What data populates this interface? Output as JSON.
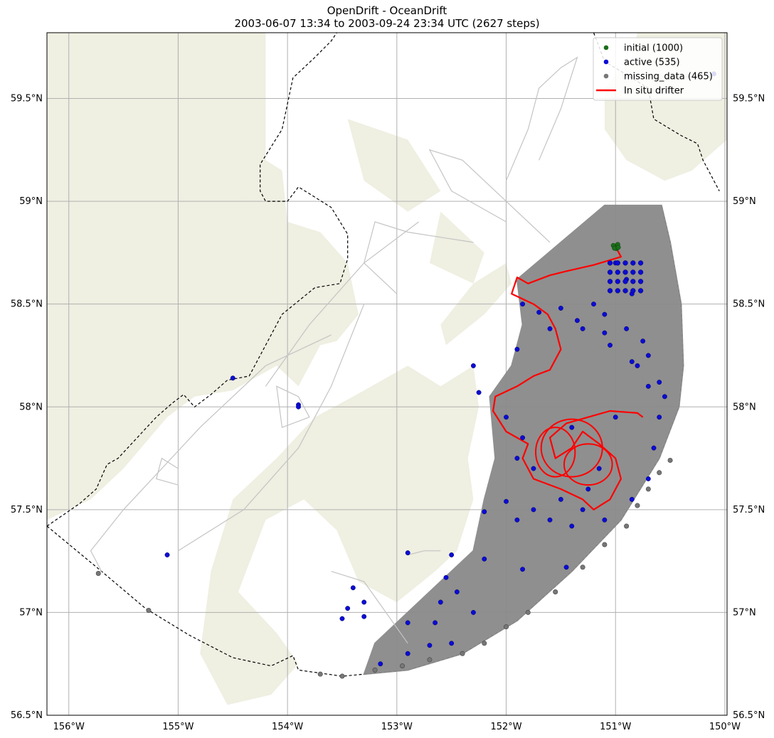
{
  "title": "OpenDrift - OceanDrift",
  "subtitle": "2003-06-07 13:34 to 2003-09-24 23:34 UTC (2627 steps)",
  "map": {
    "lon_range": [
      -156.2,
      -149.98
    ],
    "lat_range": [
      56.5,
      59.82
    ],
    "lon_ticks": [
      {
        "value": -156,
        "label": "156°W"
      },
      {
        "value": -155,
        "label": "155°W"
      },
      {
        "value": -154,
        "label": "154°W"
      },
      {
        "value": -153,
        "label": "153°W"
      },
      {
        "value": -152,
        "label": "152°W"
      },
      {
        "value": -151,
        "label": "151°W"
      },
      {
        "value": -150,
        "label": "150°W"
      }
    ],
    "lat_ticks": [
      {
        "value": 56.5,
        "label": "56.5°N"
      },
      {
        "value": 57.0,
        "label": "57°N"
      },
      {
        "value": 57.5,
        "label": "57.5°N"
      },
      {
        "value": 58.0,
        "label": "58°N"
      },
      {
        "value": 58.5,
        "label": "58.5°N"
      },
      {
        "value": 59.0,
        "label": "59°N"
      },
      {
        "value": 59.5,
        "label": "59.5°N"
      }
    ],
    "land_color": "#efefe2",
    "grid": true
  },
  "legend": {
    "position": "top-right",
    "items": [
      {
        "label": "initial (1000)",
        "color": "#1a6e1a",
        "kind": "dot"
      },
      {
        "label": "active (535)",
        "color": "#0b0bd6",
        "kind": "dot"
      },
      {
        "label": "missing_data (465)",
        "color": "#777777",
        "kind": "dot"
      },
      {
        "label": "In situ drifter",
        "color": "#ff0000",
        "kind": "line"
      }
    ]
  },
  "colors": {
    "trajectories": "#8a8a8a",
    "trajectory_light": "#c4c4c4",
    "active": "#0b0bd6",
    "initial": "#1a6e1a",
    "missing": "#777777",
    "drifter": "#ff0000"
  },
  "drift_data": {
    "seeding_site": {
      "lon": -151.0,
      "lat": 58.78
    },
    "initial_count": 1000,
    "active_count": 535,
    "missing_count": 465,
    "sample_active": [
      [
        -151.0,
        58.7
      ],
      [
        -150.9,
        58.62
      ],
      [
        -150.85,
        58.55
      ],
      [
        -151.1,
        58.45
      ],
      [
        -151.2,
        58.5
      ],
      [
        -151.35,
        58.42
      ],
      [
        -151.5,
        58.48
      ],
      [
        -151.6,
        58.38
      ],
      [
        -150.9,
        58.38
      ],
      [
        -150.75,
        58.32
      ],
      [
        -150.7,
        58.25
      ],
      [
        -151.05,
        58.3
      ],
      [
        -151.1,
        58.36
      ],
      [
        -150.8,
        58.2
      ],
      [
        -150.6,
        58.12
      ],
      [
        -150.55,
        58.05
      ],
      [
        -150.6,
        57.95
      ],
      [
        -150.7,
        58.1
      ],
      [
        -150.85,
        58.22
      ],
      [
        -151.3,
        58.38
      ],
      [
        -151.85,
        58.5
      ],
      [
        -151.7,
        58.46
      ],
      [
        -151.9,
        58.28
      ],
      [
        -152.3,
        58.2
      ],
      [
        -152.25,
        58.07
      ],
      [
        -152.2,
        57.49
      ],
      [
        -152.0,
        57.54
      ],
      [
        -151.9,
        57.45
      ],
      [
        -151.75,
        57.5
      ],
      [
        -151.6,
        57.45
      ],
      [
        -151.5,
        57.55
      ],
      [
        -151.3,
        57.5
      ],
      [
        -151.1,
        57.45
      ],
      [
        -150.85,
        57.55
      ],
      [
        -151.4,
        57.42
      ],
      [
        -151.45,
        57.22
      ],
      [
        -151.85,
        57.21
      ],
      [
        -152.2,
        57.26
      ],
      [
        -152.5,
        57.28
      ],
      [
        -152.55,
        57.17
      ],
      [
        -152.6,
        57.05
      ],
      [
        -152.45,
        57.1
      ],
      [
        -152.3,
        57.0
      ],
      [
        -152.5,
        56.85
      ],
      [
        -152.65,
        56.95
      ],
      [
        -152.7,
        56.84
      ],
      [
        -152.9,
        56.95
      ],
      [
        -152.9,
        56.8
      ],
      [
        -153.15,
        56.75
      ],
      [
        -153.3,
        57.05
      ],
      [
        -153.4,
        57.12
      ],
      [
        -153.45,
        57.02
      ],
      [
        -153.5,
        56.97
      ],
      [
        -153.3,
        56.98
      ],
      [
        -152.9,
        57.29
      ],
      [
        -153.9,
        58.01
      ],
      [
        -153.9,
        58.0
      ],
      [
        -154.5,
        58.14
      ],
      [
        -155.1,
        57.28
      ],
      [
        -150.1,
        59.62
      ],
      [
        -150.7,
        57.65
      ],
      [
        -151.15,
        57.7
      ],
      [
        -151.9,
        57.75
      ],
      [
        -151.85,
        57.85
      ],
      [
        -151.25,
        57.6
      ],
      [
        -150.65,
        57.8
      ],
      [
        -151.0,
        57.95
      ],
      [
        -151.4,
        57.9
      ],
      [
        -151.75,
        57.7
      ],
      [
        -152.0,
        57.95
      ]
    ],
    "missing_points_description": "stranded along the southern model boundary",
    "sample_missing": [
      [
        -155.73,
        57.19
      ],
      [
        -155.27,
        57.01
      ],
      [
        -153.7,
        56.7
      ],
      [
        -153.5,
        56.69
      ],
      [
        -153.2,
        56.72
      ],
      [
        -152.95,
        56.74
      ],
      [
        -152.7,
        56.77
      ],
      [
        -152.4,
        56.8
      ],
      [
        -152.2,
        56.85
      ],
      [
        -152.0,
        56.93
      ],
      [
        -151.8,
        57.0
      ],
      [
        -151.55,
        57.1
      ],
      [
        -151.3,
        57.22
      ],
      [
        -151.1,
        57.33
      ],
      [
        -150.9,
        57.42
      ],
      [
        -150.8,
        57.52
      ],
      [
        -150.7,
        57.6
      ],
      [
        -150.6,
        57.68
      ],
      [
        -150.5,
        57.74
      ]
    ],
    "drifter_track": [
      [
        -151.0,
        58.78
      ],
      [
        -150.95,
        58.73
      ],
      [
        -151.2,
        58.69
      ],
      [
        -151.45,
        58.66
      ],
      [
        -151.6,
        58.64
      ],
      [
        -151.8,
        58.6
      ],
      [
        -151.9,
        58.63
      ],
      [
        -151.95,
        58.55
      ],
      [
        -151.75,
        58.5
      ],
      [
        -151.62,
        58.45
      ],
      [
        -151.55,
        58.38
      ],
      [
        -151.5,
        58.28
      ],
      [
        -151.6,
        58.18
      ],
      [
        -151.75,
        58.15
      ],
      [
        -151.9,
        58.1
      ],
      [
        -152.1,
        58.05
      ],
      [
        -152.12,
        57.98
      ],
      [
        -152.0,
        57.88
      ],
      [
        -151.8,
        57.82
      ],
      [
        -151.85,
        57.75
      ],
      [
        -151.75,
        57.65
      ],
      [
        -151.5,
        57.6
      ],
      [
        -151.3,
        57.55
      ],
      [
        -151.2,
        57.5
      ],
      [
        -151.05,
        57.55
      ],
      [
        -150.95,
        57.65
      ],
      [
        -151.0,
        57.75
      ],
      [
        -151.15,
        57.82
      ],
      [
        -151.3,
        57.88
      ],
      [
        -151.4,
        57.8
      ],
      [
        -151.55,
        57.75
      ],
      [
        -151.6,
        57.85
      ],
      [
        -151.45,
        57.92
      ],
      [
        -151.25,
        57.95
      ],
      [
        -151.05,
        57.98
      ],
      [
        -150.8,
        57.97
      ],
      [
        -150.75,
        57.95
      ]
    ]
  }
}
